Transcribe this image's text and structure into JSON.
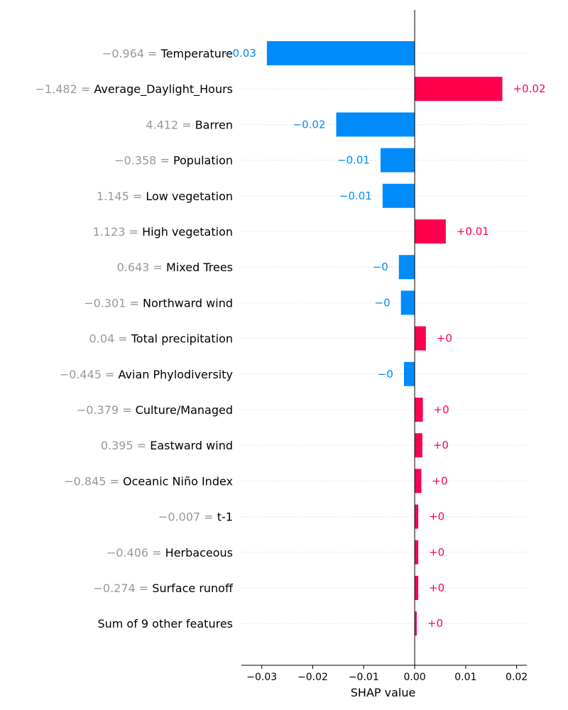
{
  "chart_data": {
    "type": "bar",
    "orientation": "horizontal",
    "xlabel": "SHAP value",
    "xlim": [
      -0.034,
      0.022
    ],
    "xticks": [
      -0.03,
      -0.02,
      -0.01,
      0.0,
      0.01,
      0.02
    ],
    "xtick_labels": [
      "−0.03",
      "−0.02",
      "−0.01",
      "0.00",
      "0.01",
      "0.02"
    ],
    "grid": "horizontal dotted per row",
    "colors": {
      "positive": "#ff0051",
      "negative": "#008bfb",
      "feature_value": "#999999"
    },
    "features": [
      {
        "value": "−0.964 = ",
        "name": "Temperature",
        "shap": -0.029,
        "label": "−0.03"
      },
      {
        "value": "−1.482 = ",
        "name": "Average_Daylight_Hours",
        "shap": 0.0172,
        "label": "+0.02"
      },
      {
        "value": "4.412 = ",
        "name": "Barren",
        "shap": -0.0154,
        "label": "−0.02"
      },
      {
        "value": "−0.358 = ",
        "name": "Population",
        "shap": -0.0067,
        "label": "−0.01"
      },
      {
        "value": "1.145 = ",
        "name": "Low vegetation",
        "shap": -0.0063,
        "label": "−0.01"
      },
      {
        "value": "1.123 = ",
        "name": "High vegetation",
        "shap": 0.0061,
        "label": "+0.01"
      },
      {
        "value": "0.643 = ",
        "name": "Mixed Trees",
        "shap": -0.0031,
        "label": "−0"
      },
      {
        "value": "−0.301 = ",
        "name": "Northward wind",
        "shap": -0.0027,
        "label": "−0"
      },
      {
        "value": "0.04 = ",
        "name": "Total precipitation",
        "shap": 0.0022,
        "label": "+0"
      },
      {
        "value": "−0.445 = ",
        "name": "Avian Phylodiversity",
        "shap": -0.0021,
        "label": "−0"
      },
      {
        "value": "−0.379 = ",
        "name": "Culture/Managed",
        "shap": 0.0016,
        "label": "+0"
      },
      {
        "value": "0.395 = ",
        "name": "Eastward wind",
        "shap": 0.0015,
        "label": "+0"
      },
      {
        "value": "−0.845 = ",
        "name": "Oceanic Niño Index",
        "shap": 0.0013,
        "label": "+0"
      },
      {
        "value": "−0.007 = ",
        "name": "t-1",
        "shap": 0.0007,
        "label": "+0"
      },
      {
        "value": "−0.406 = ",
        "name": "Herbaceous",
        "shap": 0.0007,
        "label": "+0"
      },
      {
        "value": "−0.274 = ",
        "name": "Surface runoff",
        "shap": 0.0007,
        "label": "+0"
      },
      {
        "value": "",
        "name": "Sum of 9 other features",
        "shap": 0.0004,
        "label": "+0"
      }
    ]
  }
}
